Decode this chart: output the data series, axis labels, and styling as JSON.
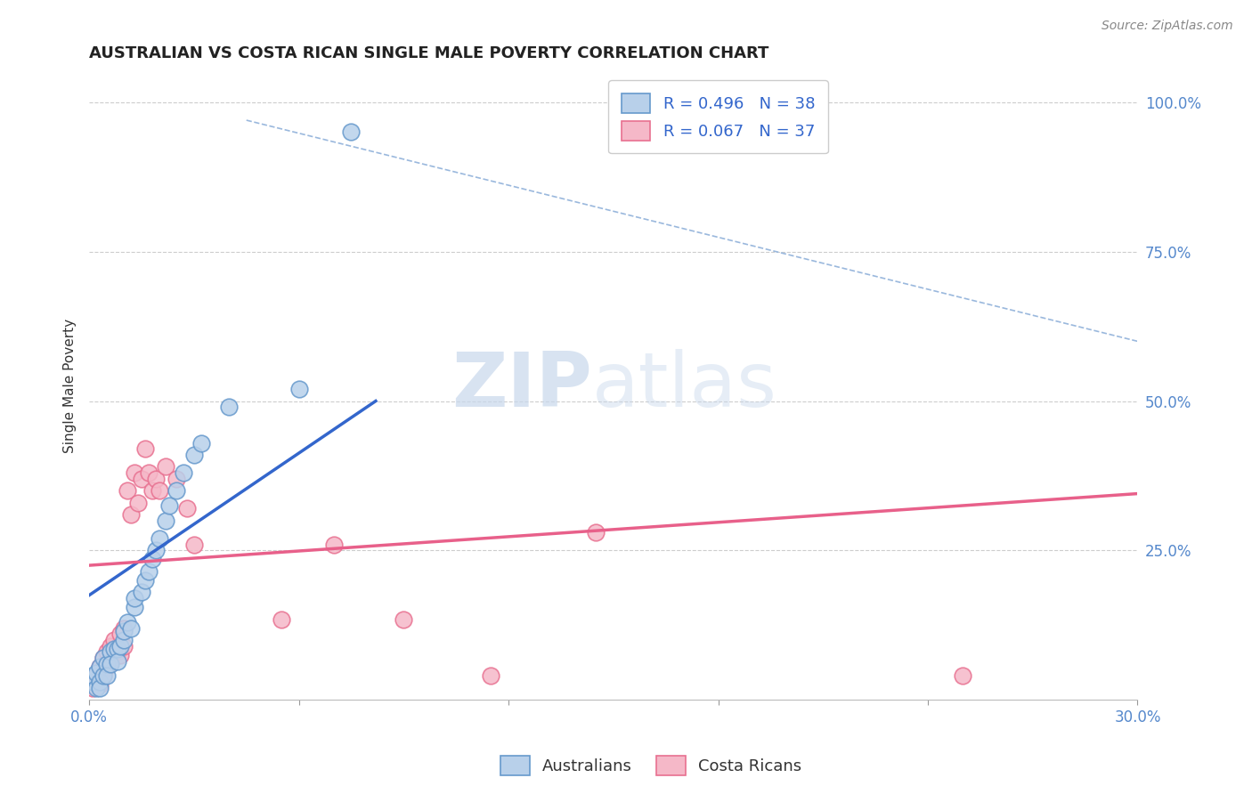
{
  "title": "AUSTRALIAN VS COSTA RICAN SINGLE MALE POVERTY CORRELATION CHART",
  "source": "Source: ZipAtlas.com",
  "ylabel": "Single Male Poverty",
  "xlim": [
    0.0,
    0.3
  ],
  "ylim": [
    0.0,
    1.05
  ],
  "xticks": [
    0.0,
    0.06,
    0.12,
    0.18,
    0.24,
    0.3
  ],
  "xticklabels": [
    "0.0%",
    "",
    "",
    "",
    "",
    "30.0%"
  ],
  "ytick_positions": [
    0.25,
    0.5,
    0.75,
    1.0
  ],
  "ytick_labels": [
    "25.0%",
    "50.0%",
    "75.0%",
    "100.0%"
  ],
  "watermark_zip": "ZIP",
  "watermark_atlas": "atlas",
  "background_color": "#ffffff",
  "grid_color": "#c8c8c8",
  "aus_color": "#b8d0ea",
  "aus_edge_color": "#6699cc",
  "cr_color": "#f5b8c8",
  "cr_edge_color": "#e87090",
  "aus_line_color": "#3366cc",
  "cr_line_color": "#e8608a",
  "ref_line_color": "#9ab8dd",
  "aus_R": 0.496,
  "aus_N": 38,
  "cr_R": 0.067,
  "cr_N": 37,
  "aus_scatter_x": [
    0.001,
    0.001,
    0.002,
    0.002,
    0.003,
    0.003,
    0.003,
    0.004,
    0.004,
    0.005,
    0.005,
    0.006,
    0.006,
    0.007,
    0.008,
    0.008,
    0.009,
    0.01,
    0.01,
    0.011,
    0.012,
    0.013,
    0.013,
    0.015,
    0.016,
    0.017,
    0.018,
    0.019,
    0.02,
    0.022,
    0.023,
    0.025,
    0.027,
    0.03,
    0.032,
    0.04,
    0.06,
    0.075
  ],
  "aus_scatter_y": [
    0.03,
    0.04,
    0.045,
    0.02,
    0.055,
    0.03,
    0.02,
    0.07,
    0.04,
    0.06,
    0.04,
    0.08,
    0.06,
    0.085,
    0.085,
    0.065,
    0.09,
    0.1,
    0.115,
    0.13,
    0.12,
    0.155,
    0.17,
    0.18,
    0.2,
    0.215,
    0.235,
    0.25,
    0.27,
    0.3,
    0.325,
    0.35,
    0.38,
    0.41,
    0.43,
    0.49,
    0.52,
    0.95
  ],
  "cr_scatter_x": [
    0.001,
    0.002,
    0.002,
    0.003,
    0.003,
    0.004,
    0.004,
    0.005,
    0.005,
    0.006,
    0.006,
    0.007,
    0.008,
    0.009,
    0.009,
    0.01,
    0.01,
    0.011,
    0.012,
    0.013,
    0.014,
    0.015,
    0.016,
    0.017,
    0.018,
    0.019,
    0.02,
    0.022,
    0.025,
    0.028,
    0.03,
    0.055,
    0.07,
    0.09,
    0.115,
    0.145,
    0.25
  ],
  "cr_scatter_y": [
    0.02,
    0.03,
    0.04,
    0.055,
    0.025,
    0.07,
    0.04,
    0.08,
    0.055,
    0.09,
    0.065,
    0.1,
    0.08,
    0.11,
    0.075,
    0.12,
    0.09,
    0.35,
    0.31,
    0.38,
    0.33,
    0.37,
    0.42,
    0.38,
    0.35,
    0.37,
    0.35,
    0.39,
    0.37,
    0.32,
    0.26,
    0.135,
    0.26,
    0.135,
    0.04,
    0.28,
    0.04
  ],
  "aus_line_x": [
    0.0,
    0.082
  ],
  "aus_line_y": [
    0.175,
    0.5
  ],
  "cr_line_x": [
    0.0,
    0.3
  ],
  "cr_line_y": [
    0.225,
    0.345
  ],
  "ref_line_x": [
    0.045,
    0.3
  ],
  "ref_line_y": [
    0.97,
    0.6
  ]
}
